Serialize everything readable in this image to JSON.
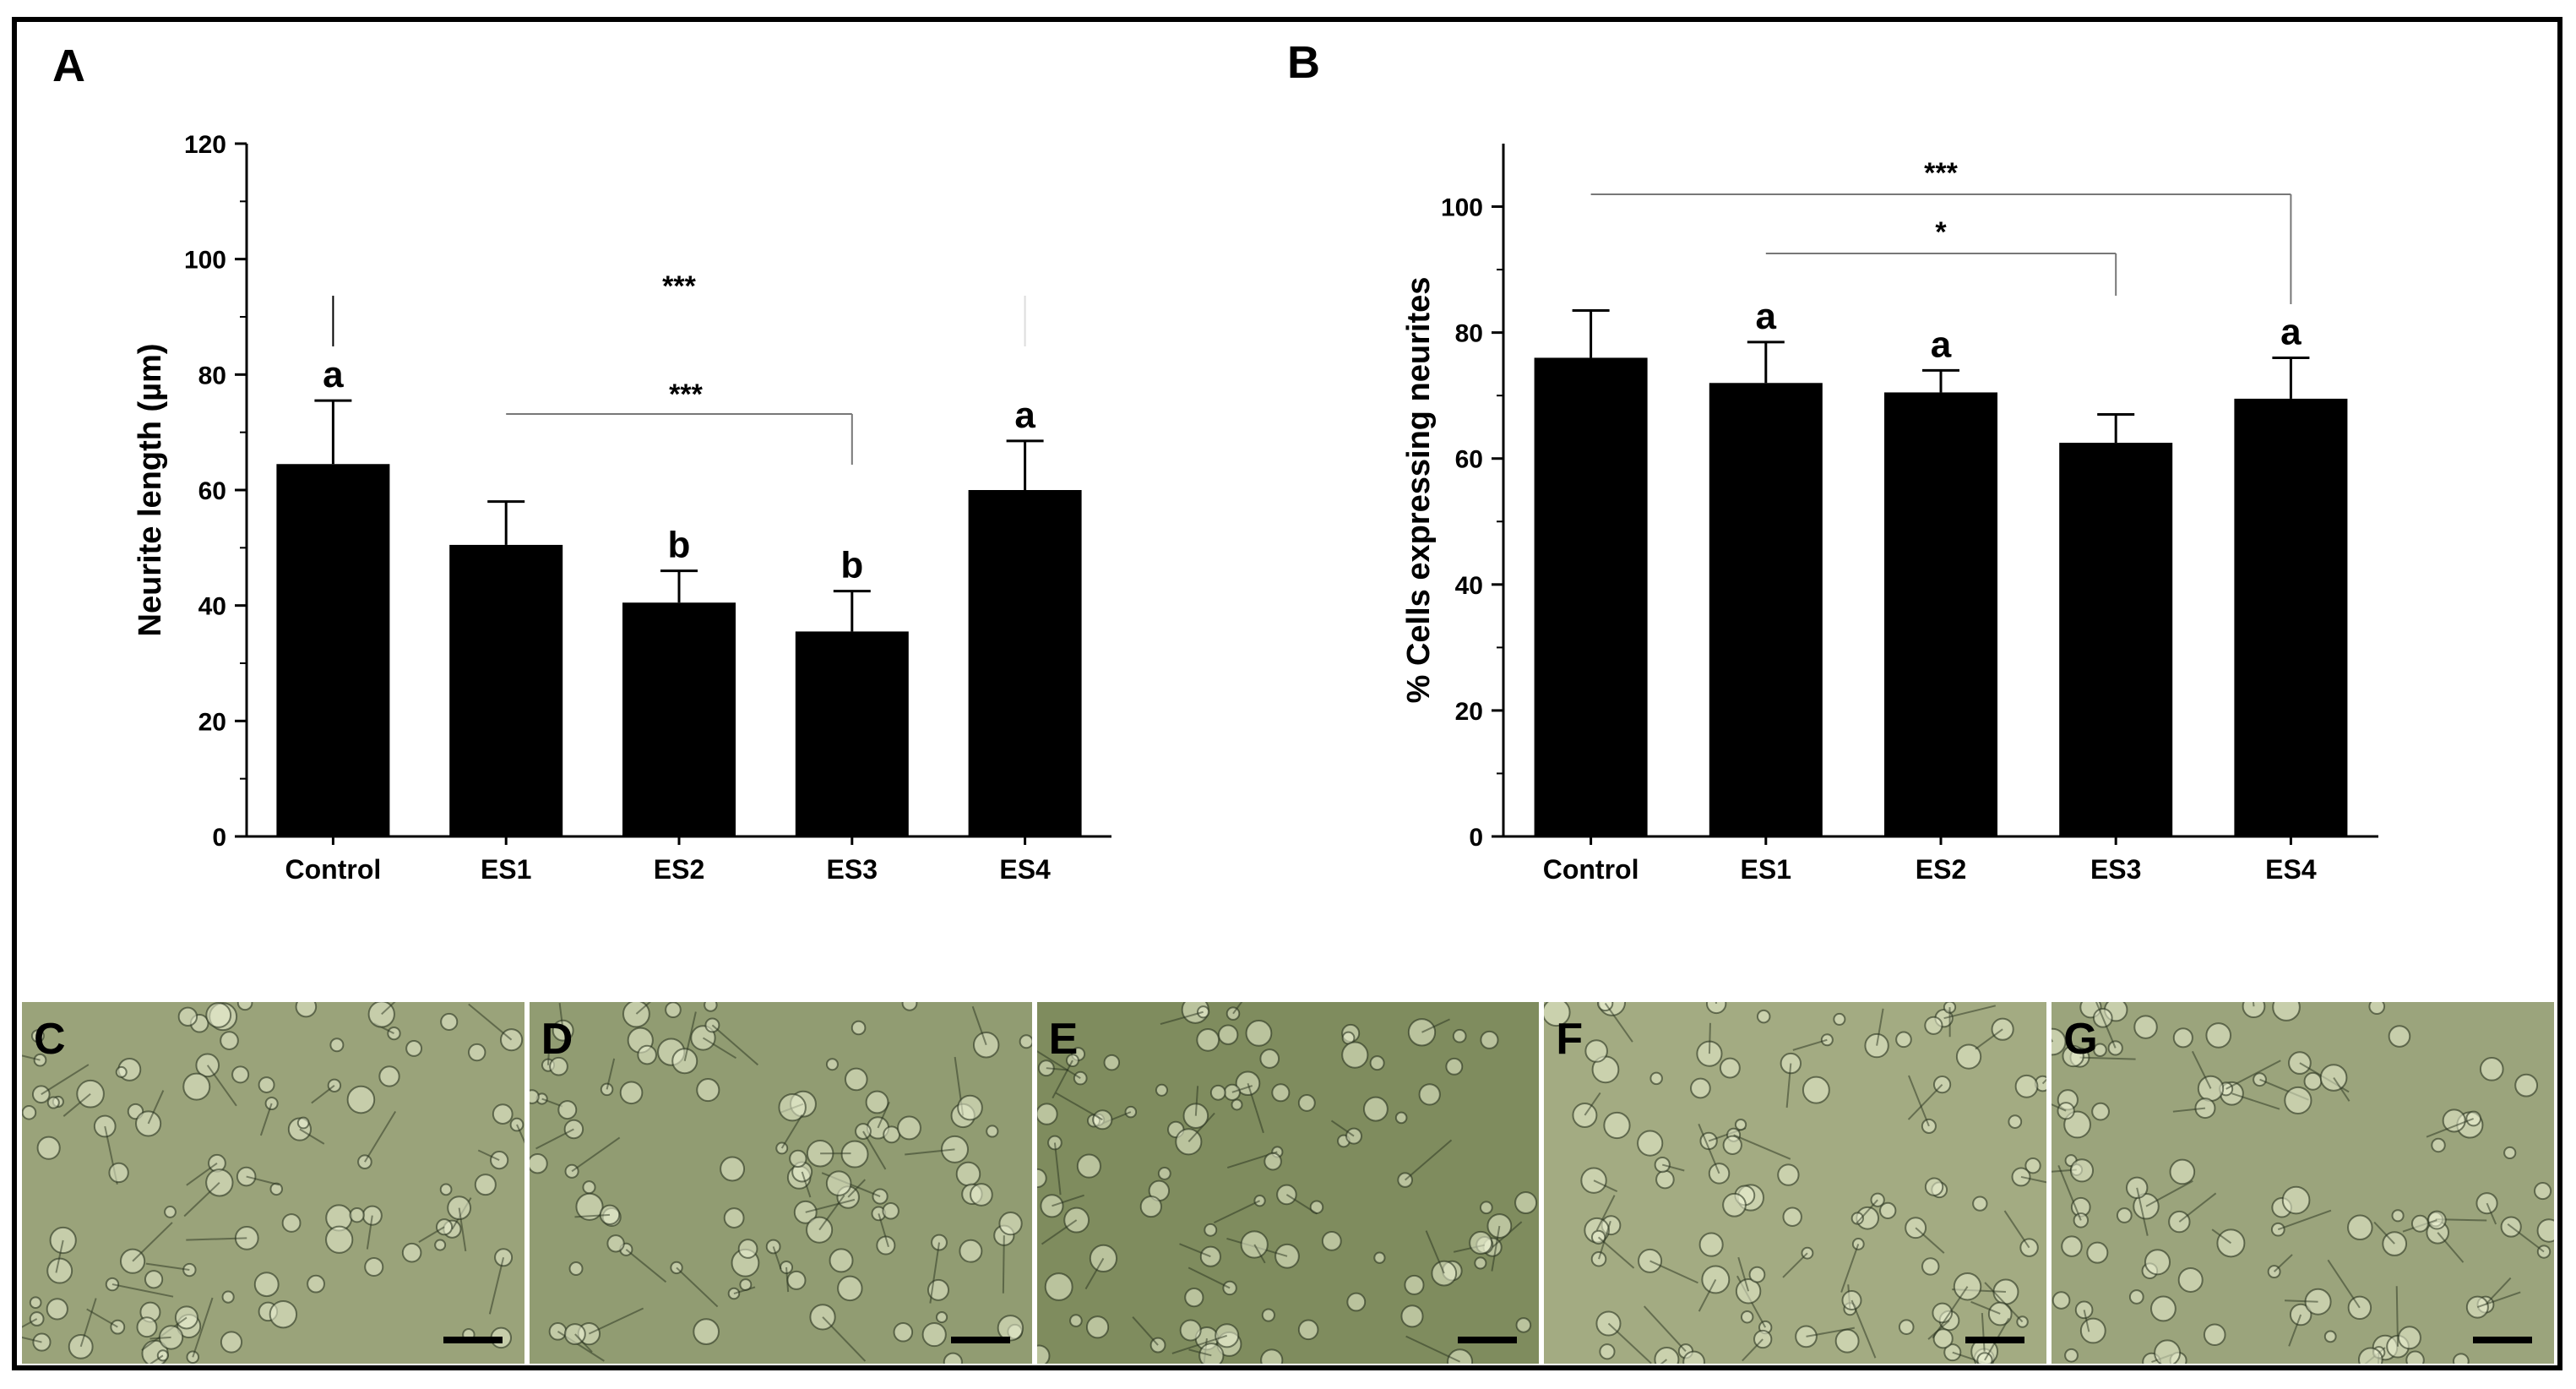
{
  "chart_data": [
    {
      "panel": "A",
      "type": "bar",
      "ylabel": "Neurite length (µm)",
      "categories": [
        "Control",
        "ES1",
        "ES2",
        "ES3",
        "ES4"
      ],
      "values": [
        64.5,
        50.5,
        40.5,
        35.5,
        60.0
      ],
      "errors": [
        11.0,
        7.5,
        5.5,
        7.0,
        8.5
      ],
      "ylim": [
        0,
        120
      ],
      "yticks": [
        0,
        20,
        40,
        60,
        80,
        100,
        120
      ],
      "letters": [
        "a",
        "",
        "b",
        "b",
        "a"
      ],
      "significance": [
        {
          "label": "***",
          "from": 0,
          "to": 4
        },
        {
          "label": "***",
          "from": 1,
          "to": 3
        }
      ]
    },
    {
      "panel": "B",
      "type": "bar",
      "ylabel": "% Cells expressing neurites",
      "categories": [
        "Control",
        "ES1",
        "ES2",
        "ES3",
        "ES4"
      ],
      "values": [
        76.0,
        72.0,
        70.5,
        62.5,
        69.5
      ],
      "errors": [
        7.5,
        6.5,
        3.5,
        4.5,
        6.5
      ],
      "ylim": [
        0,
        110
      ],
      "yticks": [
        0,
        20,
        40,
        60,
        80,
        100
      ],
      "letters": [
        "",
        "a",
        "a",
        "",
        "a"
      ],
      "significance": [
        {
          "label": "***",
          "from": 0,
          "to": 4
        },
        {
          "label": "*",
          "from": 1,
          "to": 3
        }
      ]
    }
  ],
  "micrographs": [
    {
      "label": "C",
      "bg": "#9aa37a"
    },
    {
      "label": "D",
      "bg": "#919c72"
    },
    {
      "label": "E",
      "bg": "#7f8c5e"
    },
    {
      "label": "F",
      "bg": "#a3ab82"
    },
    {
      "label": "G",
      "bg": "#9ba47c"
    }
  ]
}
